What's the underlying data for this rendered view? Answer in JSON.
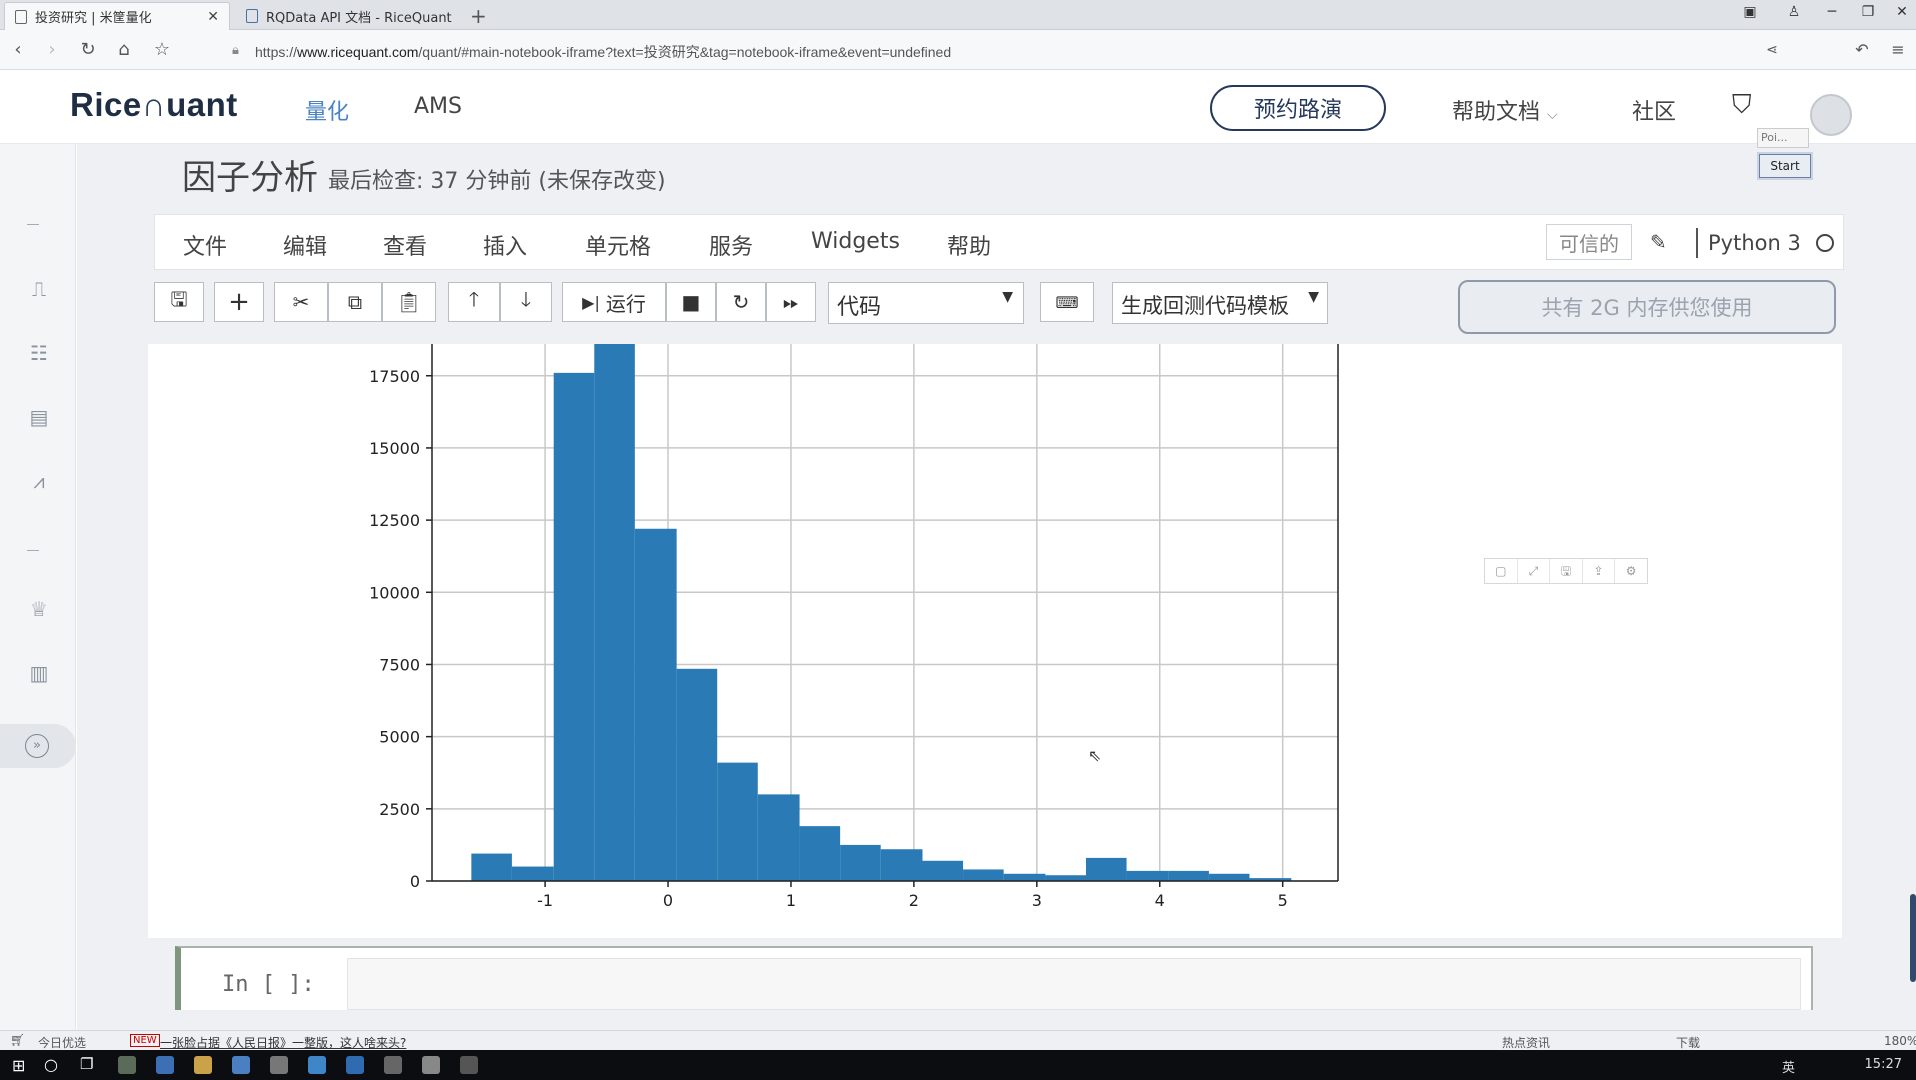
{
  "browser": {
    "tabs": [
      {
        "title": "投资研究 | 米筐量化",
        "active": true
      },
      {
        "title": "RQData API 文档 - RiceQuant",
        "active": false
      }
    ],
    "url_prefix": "https://",
    "url_domain": "www.ricequant.com",
    "url_path": "/quant/#main-notebook-iframe?text=投资研究&tag=notebook-iframe&event=undefined"
  },
  "site": {
    "logo_left": "Rice",
    "logo_right": "uant",
    "nav": [
      "量化",
      "AMS"
    ],
    "demo_button": "预约路演",
    "help_docs": "帮助文档",
    "community": "社区"
  },
  "notebook": {
    "title": "因子分析",
    "status": "最后检查: 37 分钟前  (未保存改变)",
    "menu": [
      "文件",
      "编辑",
      "查看",
      "插入",
      "单元格",
      "服务",
      "Widgets",
      "帮助"
    ],
    "trusted": "可信的",
    "kernel": "Python 3",
    "run_label": "运行",
    "cell_type": "代码",
    "template": "生成回测代码模板",
    "memory": "共有 2G 内存供您使用",
    "prompt": "In  [  ]:"
  },
  "overlay": {
    "poi": "Poi...",
    "start": "Start"
  },
  "statusbar": {
    "left_label": "今日优选",
    "headline": "一张脸占据《人民日报》一整版，这人啥来头?",
    "news": "热点资讯",
    "download": "下载",
    "zoom": "180%"
  },
  "taskbar": {
    "ime": "英",
    "time": "15:27"
  },
  "colors": {
    "bar": "#2a7ab5",
    "brand": "#25395a",
    "link": "#4b84c4"
  },
  "chart_data": {
    "type": "bar",
    "x_bin_edges": [
      -1.6,
      -1.27,
      -0.93,
      -0.6,
      -0.27,
      0.07,
      0.4,
      0.73,
      1.07,
      1.4,
      1.73,
      2.07,
      2.4,
      2.73,
      3.07,
      3.4,
      3.73,
      4.07,
      4.4,
      4.73,
      5.07
    ],
    "values": [
      950,
      500,
      17600,
      18600,
      12200,
      7350,
      4100,
      3000,
      1900,
      1250,
      1100,
      700,
      400,
      250,
      200,
      800,
      350,
      350,
      250,
      100
    ],
    "xticks": [
      "-1",
      "0",
      "1",
      "2",
      "3",
      "4",
      "5"
    ],
    "yticks": [
      "0",
      "2500",
      "5000",
      "7500",
      "10000",
      "12500",
      "15000",
      "17500"
    ],
    "xlim": [
      -1.92,
      5.45
    ],
    "ylim": [
      0,
      18600
    ],
    "grid": true
  }
}
